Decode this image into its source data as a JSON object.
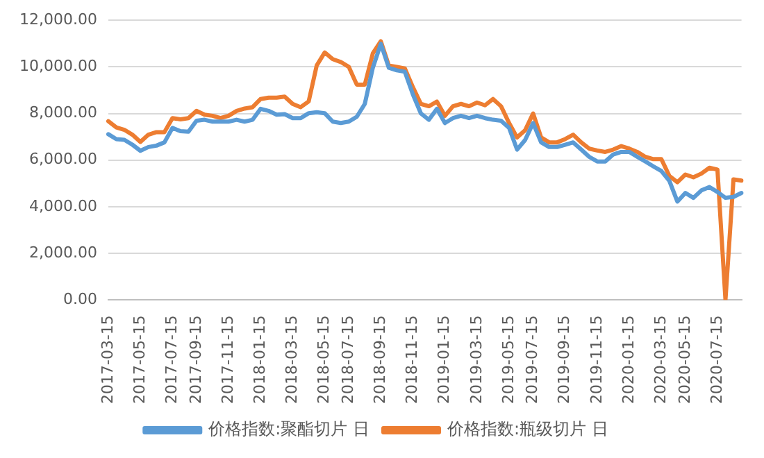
{
  "chart_data": {
    "type": "line",
    "categories": [
      "2017-03-15",
      null,
      null,
      null,
      "2017-05-15",
      null,
      null,
      null,
      "2017-07-15",
      null,
      null,
      "2017-09-15",
      null,
      null,
      null,
      "2017-11-15",
      null,
      null,
      null,
      "2018-01-15",
      null,
      null,
      null,
      "2018-03-15",
      null,
      null,
      null,
      "2018-05-15",
      null,
      null,
      "2018-07-15",
      null,
      null,
      null,
      "2018-09-15",
      null,
      null,
      null,
      "2018-11-15",
      null,
      null,
      null,
      "2019-01-15",
      null,
      null,
      null,
      "2019-03-15",
      null,
      null,
      null,
      "2019-05-15",
      null,
      null,
      "2019-07-15",
      null,
      null,
      null,
      "2019-09-15",
      null,
      null,
      null,
      "2019-11-15",
      null,
      null,
      null,
      "2020-01-15",
      null,
      null,
      null,
      "2020-03-15",
      null,
      null,
      "2020-05-15",
      null,
      null,
      null,
      "2020-07-15",
      null,
      null,
      null
    ],
    "series": [
      {
        "name": "价格指数:聚酯切片 日",
        "color": "#5b9bd5",
        "values": [
          7110,
          6900,
          6870,
          6660,
          6400,
          6560,
          6620,
          6760,
          7380,
          7240,
          7220,
          7690,
          7730,
          7650,
          7650,
          7650,
          7730,
          7650,
          7730,
          8200,
          8110,
          7950,
          7970,
          7800,
          7800,
          8010,
          8050,
          8010,
          7650,
          7590,
          7650,
          7860,
          8410,
          9960,
          10990,
          9960,
          9850,
          9790,
          8820,
          8000,
          7730,
          8200,
          7590,
          7800,
          7900,
          7800,
          7900,
          7800,
          7730,
          7690,
          7380,
          6450,
          6860,
          7590,
          6760,
          6560,
          6560,
          6660,
          6760,
          6450,
          6140,
          5940,
          5940,
          6240,
          6350,
          6350,
          6140,
          5940,
          5730,
          5530,
          5110,
          4220,
          4590,
          4380,
          4700,
          4840,
          4630,
          4380,
          4420,
          4590
        ]
      },
      {
        "name": "价格指数:瓶级切片 日",
        "color": "#ed7d31",
        "values": [
          7670,
          7400,
          7300,
          7090,
          6780,
          7090,
          7200,
          7200,
          7800,
          7750,
          7800,
          8110,
          7950,
          7900,
          7800,
          7900,
          8110,
          8210,
          8270,
          8620,
          8680,
          8680,
          8720,
          8410,
          8270,
          8520,
          10060,
          10620,
          10330,
          10210,
          10000,
          9240,
          9240,
          10580,
          11100,
          10060,
          10000,
          9930,
          9130,
          8410,
          8310,
          8510,
          7900,
          8310,
          8410,
          8310,
          8470,
          8350,
          8620,
          8310,
          7590,
          6970,
          7280,
          8000,
          6970,
          6760,
          6760,
          6900,
          7090,
          6760,
          6490,
          6410,
          6350,
          6450,
          6600,
          6490,
          6350,
          6140,
          6040,
          6040,
          5320,
          5050,
          5380,
          5260,
          5420,
          5670,
          5590,
          0,
          5170,
          5120
        ]
      }
    ],
    "ylim": [
      0,
      12000
    ],
    "yticks": [
      {
        "value": 0,
        "label": "0.00"
      },
      {
        "value": 2000,
        "label": "2,000.00"
      },
      {
        "value": 4000,
        "label": "4,000.00"
      },
      {
        "value": 6000,
        "label": "6,000.00"
      },
      {
        "value": 8000,
        "label": "8,000.00"
      },
      {
        "value": 10000,
        "label": "10,000.00"
      },
      {
        "value": 12000,
        "label": "12,000.00"
      }
    ],
    "grid": "y",
    "legend": "bottom",
    "marker": "none",
    "line_style": "solid"
  }
}
